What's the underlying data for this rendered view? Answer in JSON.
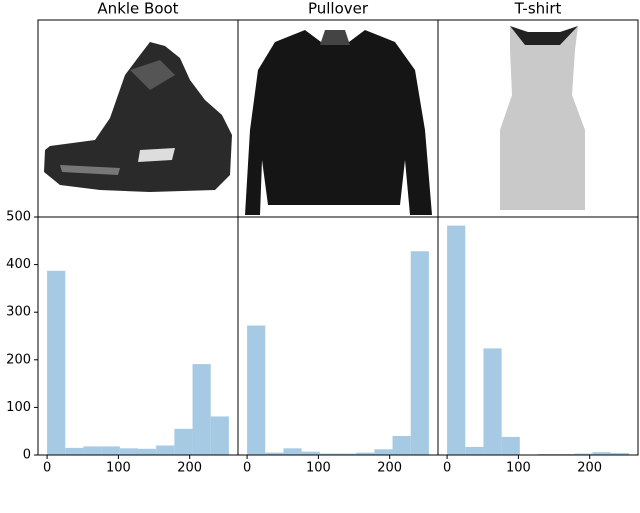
{
  "chart_data": [
    {
      "type": "histogram",
      "title": "Ankle Boot",
      "color": "#a6cae3",
      "bins": [
        0,
        25.5,
        51,
        76.5,
        102,
        127.5,
        153,
        178.5,
        204,
        229.5,
        255
      ],
      "values": [
        387,
        15,
        18,
        18,
        14,
        13,
        20,
        55,
        191,
        81
      ],
      "xlim": [
        -12.75,
        267.75
      ],
      "ylim": [
        0,
        500
      ],
      "xticks": [
        0,
        100,
        200
      ],
      "yticks": [
        0,
        100,
        200,
        300,
        400,
        500
      ]
    },
    {
      "type": "histogram",
      "title": "Pullover",
      "color": "#a6cae3",
      "bins": [
        0,
        25.5,
        51,
        76.5,
        102,
        127.5,
        153,
        178.5,
        204,
        229.5,
        255
      ],
      "values": [
        272,
        5,
        14,
        7,
        3,
        3,
        5,
        12,
        40,
        428
      ],
      "xlim": [
        -12.75,
        267.75
      ],
      "ylim": [
        0,
        500
      ],
      "xticks": [
        0,
        100,
        200
      ]
    },
    {
      "type": "histogram",
      "title": "T-shirt",
      "color": "#a6cae3",
      "bins": [
        0,
        25.5,
        51,
        76.5,
        102,
        127.5,
        153,
        178.5,
        204,
        229.5,
        255
      ],
      "values": [
        482,
        17,
        224,
        38,
        0,
        2,
        2,
        3,
        6,
        4
      ],
      "xlim": [
        -12.75,
        267.75
      ],
      "ylim": [
        0,
        500
      ],
      "xticks": [
        0,
        100,
        200
      ]
    }
  ]
}
